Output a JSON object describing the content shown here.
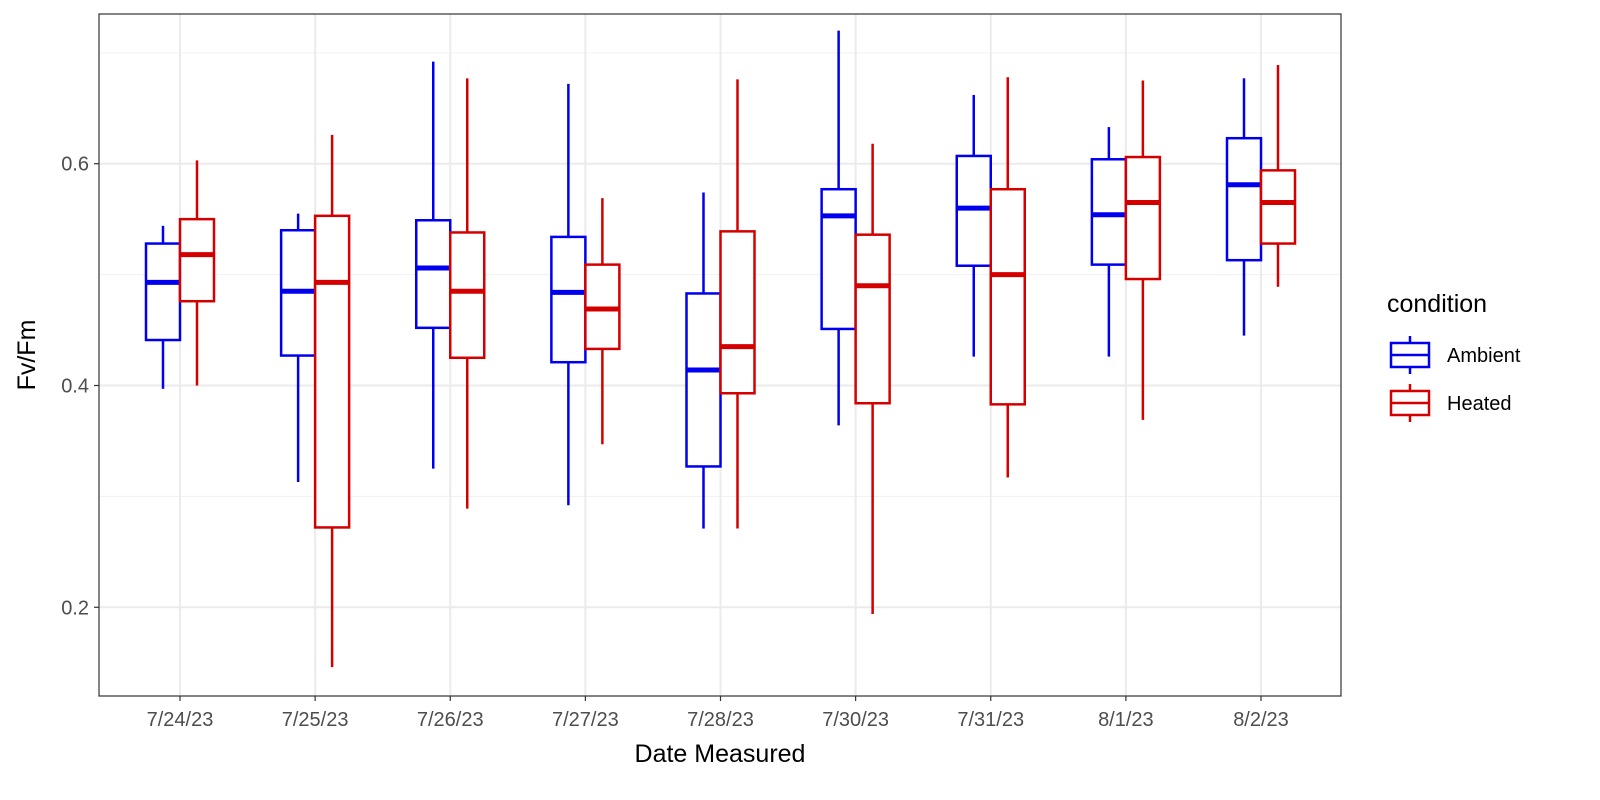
{
  "chart_data": {
    "type": "boxplot",
    "xlabel": "Date Measured",
    "ylabel": "Fv/Fm",
    "ylim": [
      0.12,
      0.735
    ],
    "y_ticks": [
      0.2,
      0.4,
      0.6
    ],
    "y_tick_labels": [
      "0.2",
      "0.4",
      "0.6"
    ],
    "grid": true,
    "legend": {
      "title": "condition",
      "position": "right"
    },
    "categories": [
      "7/24/23",
      "7/25/23",
      "7/26/23",
      "7/27/23",
      "7/28/23",
      "7/30/23",
      "7/31/23",
      "8/1/23",
      "8/2/23"
    ],
    "series": [
      {
        "name": "Ambient",
        "color": "#0000ee",
        "boxes": [
          {
            "min": 0.397,
            "q1": 0.441,
            "median": 0.493,
            "q3": 0.528,
            "max": 0.544
          },
          {
            "min": 0.313,
            "q1": 0.427,
            "median": 0.485,
            "q3": 0.54,
            "max": 0.555
          },
          {
            "min": 0.325,
            "q1": 0.452,
            "median": 0.506,
            "q3": 0.549,
            "max": 0.692
          },
          {
            "min": 0.292,
            "q1": 0.421,
            "median": 0.484,
            "q3": 0.534,
            "max": 0.672
          },
          {
            "min": 0.271,
            "q1": 0.327,
            "median": 0.414,
            "q3": 0.483,
            "max": 0.574
          },
          {
            "min": 0.364,
            "q1": 0.451,
            "median": 0.553,
            "q3": 0.577,
            "max": 0.72
          },
          {
            "min": 0.426,
            "q1": 0.508,
            "median": 0.56,
            "q3": 0.607,
            "max": 0.662
          },
          {
            "min": 0.426,
            "q1": 0.509,
            "median": 0.554,
            "q3": 0.604,
            "max": 0.633
          },
          {
            "min": 0.445,
            "q1": 0.513,
            "median": 0.581,
            "q3": 0.623,
            "max": 0.677
          }
        ]
      },
      {
        "name": "Heated",
        "color": "#d40000",
        "boxes": [
          {
            "min": 0.4,
            "q1": 0.476,
            "median": 0.518,
            "q3": 0.55,
            "max": 0.603
          },
          {
            "min": 0.146,
            "q1": 0.272,
            "median": 0.493,
            "q3": 0.553,
            "max": 0.626
          },
          {
            "min": 0.289,
            "q1": 0.425,
            "median": 0.485,
            "q3": 0.538,
            "max": 0.677
          },
          {
            "min": 0.347,
            "q1": 0.433,
            "median": 0.469,
            "q3": 0.509,
            "max": 0.569
          },
          {
            "min": 0.271,
            "q1": 0.393,
            "median": 0.435,
            "q3": 0.539,
            "max": 0.676
          },
          {
            "min": 0.194,
            "q1": 0.384,
            "median": 0.49,
            "q3": 0.536,
            "max": 0.618
          },
          {
            "min": 0.317,
            "q1": 0.383,
            "median": 0.5,
            "q3": 0.577,
            "max": 0.678
          },
          {
            "min": 0.369,
            "q1": 0.496,
            "median": 0.565,
            "q3": 0.606,
            "max": 0.675
          },
          {
            "min": 0.489,
            "q1": 0.528,
            "median": 0.565,
            "q3": 0.594,
            "max": 0.689
          }
        ]
      }
    ]
  }
}
